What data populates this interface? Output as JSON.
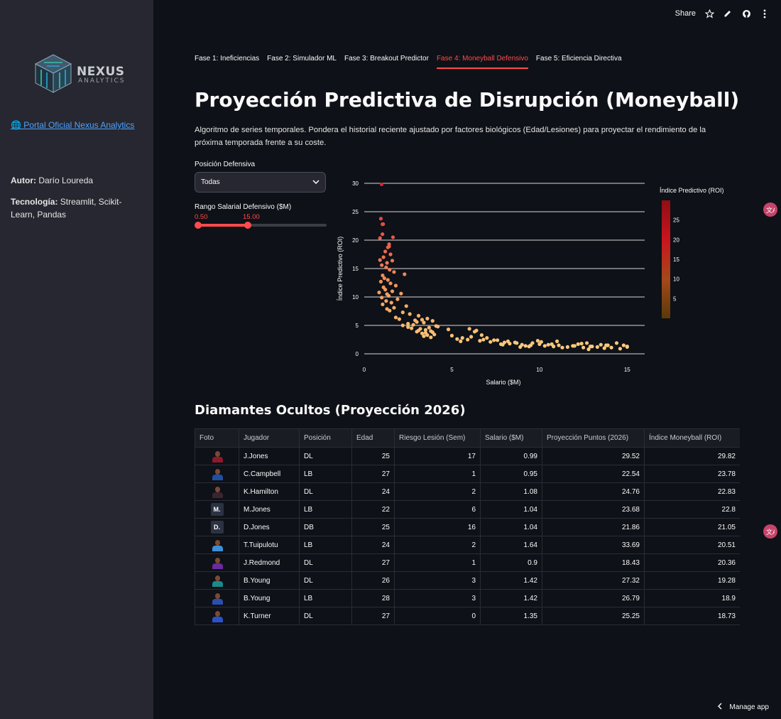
{
  "sidebar": {
    "logo": {
      "brand": "NEXUS",
      "sub": "ANALYTICS"
    },
    "portal_link": "🌐 Portal Oficial Nexus Analytics",
    "author_label": "Autor:",
    "author_value": " Darío Loureda",
    "tech_label": "Tecnología:",
    "tech_value": " Streamlit, Scikit-Learn, Pandas"
  },
  "toolbar": {
    "share_label": "Share",
    "icons": [
      "star-icon",
      "pencil-icon",
      "github-icon",
      "more-vertical-icon"
    ]
  },
  "tabs": [
    {
      "label": "Fase 1: Ineficiencias",
      "active": false
    },
    {
      "label": "Fase 2: Simulador ML",
      "active": false
    },
    {
      "label": "Fase 3: Breakout Predictor",
      "active": false
    },
    {
      "label": "Fase 4: Moneyball Defensivo",
      "active": true
    },
    {
      "label": "Fase 5: Eficiencia Directiva",
      "active": false
    }
  ],
  "header": {
    "title": "Proyección Predictiva de Disrupción (Moneyball)",
    "description": "Algoritmo de series temporales. Pondera el historial reciente ajustado por factores biológicos (Edad/Lesiones) para proyectar el rendimiento de la próxima temporada frente a su coste."
  },
  "filters": {
    "position_label": "Posición Defensiva",
    "position_value": "Todas",
    "salary_label": "Rango Salarial Defensivo ($M)",
    "salary_min": 0.5,
    "salary_max": 15.0,
    "salary_min_text": "0.50",
    "salary_max_text": "15.00",
    "slider_low_fraction": 0.0,
    "slider_high_fraction": 0.39
  },
  "chart_data": {
    "type": "scatter",
    "xlabel": "Salario ($M)",
    "ylabel": "Índice Predictivo (ROI)",
    "xlim": [
      0,
      16
    ],
    "ylim": [
      0,
      30
    ],
    "xticks": [
      0,
      5,
      10,
      15
    ],
    "yticks": [
      0,
      5,
      10,
      15,
      20,
      25,
      30
    ],
    "grid": "horizontal",
    "colorbar": {
      "title": "Índice Predictivo (ROI)",
      "ticks": [
        5,
        10,
        15,
        20,
        25
      ],
      "range": [
        0,
        30
      ],
      "colors": [
        "#5a3a0a",
        "#a5481a",
        "#c9141e",
        "#8f0e14"
      ]
    },
    "x": [
      0.99,
      0.95,
      1.08,
      1.04,
      1.04,
      1.64,
      0.9,
      1.42,
      1.42,
      1.35,
      1.2,
      1.5,
      1.1,
      0.9,
      1.3,
      1.6,
      1.0,
      1.25,
      1.45,
      1.7,
      2.3,
      1.05,
      1.15,
      1.35,
      0.95,
      1.5,
      1.8,
      1.1,
      1.2,
      1.6,
      0.85,
      1.3,
      1.4,
      2.1,
      1.0,
      1.9,
      1.25,
      1.55,
      1.05,
      2.4,
      1.7,
      1.3,
      1.45,
      2.2,
      2.6,
      3.1,
      1.8,
      2.0,
      2.9,
      3.3,
      3.6,
      3.0,
      2.5,
      2.8,
      3.4,
      3.9,
      4.1,
      3.7,
      3.2,
      3.5,
      3.8,
      4.2,
      2.7,
      3.1,
      3.9,
      3.3,
      3.6,
      2.2,
      2.5,
      3.0,
      4.0,
      3.4,
      3.8,
      3.5,
      5.0,
      5.6,
      6.0,
      5.3,
      6.3,
      6.6,
      7.2,
      6.8,
      7.6,
      8.0,
      8.3,
      8.7,
      9.0,
      9.5,
      10.0,
      10.3,
      10.8,
      11.1,
      11.6,
      12.0,
      12.5,
      12.9,
      13.3,
      13.7,
      14.1,
      14.6,
      15.0,
      5.5,
      6.1,
      7.0,
      7.8,
      8.6,
      9.2,
      9.9,
      10.5,
      11.3,
      12.2,
      13.0,
      13.9,
      14.8,
      4.8,
      5.9,
      6.4,
      7.4,
      8.2,
      9.6,
      10.7,
      11.9,
      12.7,
      13.5,
      14.4,
      6.7,
      7.9,
      9.4,
      11.0,
      12.4,
      13.8,
      15.0,
      8.9,
      10.1,
      12.8
    ],
    "y": [
      29.82,
      23.78,
      22.83,
      22.8,
      21.05,
      20.51,
      20.36,
      19.28,
      18.9,
      18.73,
      18.0,
      17.5,
      17.0,
      16.5,
      16.0,
      16.4,
      15.6,
      15.2,
      14.8,
      14.4,
      14.0,
      13.8,
      13.3,
      13.0,
      12.7,
      12.4,
      12.0,
      11.7,
      11.3,
      11.0,
      10.8,
      10.5,
      10.2,
      10.6,
      9.9,
      9.6,
      9.3,
      9.0,
      8.7,
      8.4,
      8.1,
      7.9,
      7.6,
      7.3,
      7.0,
      6.7,
      6.4,
      6.1,
      5.9,
      6.0,
      6.2,
      5.6,
      5.3,
      5.1,
      5.5,
      5.8,
      4.9,
      4.6,
      4.4,
      4.2,
      4.0,
      4.8,
      4.5,
      4.1,
      3.8,
      3.6,
      3.3,
      5.0,
      4.7,
      3.9,
      3.4,
      3.1,
      2.9,
      3.7,
      3.2,
      2.8,
      4.4,
      2.6,
      3.9,
      2.3,
      2.1,
      2.5,
      2.4,
      2.0,
      1.8,
      1.9,
      1.6,
      1.5,
      1.7,
      1.4,
      1.3,
      1.5,
      1.2,
      1.4,
      1.1,
      1.3,
      1.2,
      1.0,
      1.1,
      0.9,
      1.2,
      2.2,
      3.0,
      2.8,
      1.7,
      2.0,
      1.4,
      2.3,
      1.6,
      1.1,
      1.7,
      1.3,
      1.5,
      1.5,
      4.3,
      2.5,
      4.1,
      2.4,
      2.2,
      1.9,
      1.7,
      1.4,
      1.9,
      1.6,
      1.9,
      3.3,
      1.6,
      1.3,
      2.2,
      1.8,
      1.5,
      1.3,
      1.2,
      2.1,
      0.8
    ]
  },
  "table": {
    "title": "Diamantes Ocultos (Proyección 2026)",
    "columns": [
      "Foto",
      "Jugador",
      "Posición",
      "Edad",
      "Riesgo Lesión (Sem)",
      "Salario ($M)",
      "Proyección Puntos (2026)",
      "Índice Moneyball (ROI)"
    ],
    "rows": [
      {
        "photo": "avatar",
        "jersey": "#8b1a2a",
        "player": "J.Jones",
        "pos": "DL",
        "age": "25",
        "risk": "17",
        "salary": "0.99",
        "proj": "29.52",
        "roi": "29.82"
      },
      {
        "photo": "avatar",
        "jersey": "#1f4fa3",
        "player": "C.Campbell",
        "pos": "LB",
        "age": "27",
        "risk": "1",
        "salary": "0.95",
        "proj": "22.54",
        "roi": "23.78"
      },
      {
        "photo": "avatar",
        "jersey": "#3a2430",
        "player": "K.Hamilton",
        "pos": "DL",
        "age": "24",
        "risk": "2",
        "salary": "1.08",
        "proj": "24.76",
        "roi": "22.83"
      },
      {
        "photo": "initials",
        "initials": "M.",
        "player": "M.Jones",
        "pos": "LB",
        "age": "22",
        "risk": "6",
        "salary": "1.04",
        "proj": "23.68",
        "roi": "22.8"
      },
      {
        "photo": "initials",
        "initials": "D.",
        "player": "D.Jones",
        "pos": "DB",
        "age": "25",
        "risk": "16",
        "salary": "1.04",
        "proj": "21.86",
        "roi": "21.05"
      },
      {
        "photo": "avatar",
        "jersey": "#3b8fd6",
        "player": "T.Tuipulotu",
        "pos": "LB",
        "age": "24",
        "risk": "2",
        "salary": "1.64",
        "proj": "33.69",
        "roi": "20.51"
      },
      {
        "photo": "avatar",
        "jersey": "#6a2aa0",
        "player": "J.Redmond",
        "pos": "DL",
        "age": "27",
        "risk": "1",
        "salary": "0.9",
        "proj": "18.43",
        "roi": "20.36"
      },
      {
        "photo": "avatar",
        "jersey": "#1a8a8a",
        "player": "B.Young",
        "pos": "DL",
        "age": "26",
        "risk": "3",
        "salary": "1.42",
        "proj": "27.32",
        "roi": "19.28"
      },
      {
        "photo": "avatar",
        "jersey": "#2a4fb0",
        "player": "B.Young",
        "pos": "LB",
        "age": "28",
        "risk": "3",
        "salary": "1.42",
        "proj": "26.79",
        "roi": "18.9"
      },
      {
        "photo": "avatar",
        "jersey": "#2a52c8",
        "player": "K.Turner",
        "pos": "DL",
        "age": "27",
        "risk": "0",
        "salary": "1.35",
        "proj": "25.25",
        "roi": "18.73"
      }
    ]
  },
  "footer": {
    "manage_label": "Manage app"
  }
}
